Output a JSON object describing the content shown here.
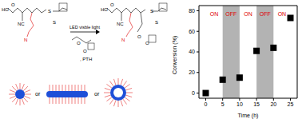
{
  "chart_data": {
    "type": "scatter",
    "x_label": "Time (h)",
    "y_label": "Conversion (%)",
    "x": [
      0,
      5,
      10,
      15,
      20,
      25
    ],
    "values": [
      0,
      13,
      15,
      41,
      44,
      73
    ],
    "color": "#000000",
    "marker": "square",
    "xlim": [
      -2,
      27
    ],
    "ylim": [
      -5,
      85
    ],
    "xticks": [
      0,
      5,
      10,
      15,
      20,
      25
    ],
    "yticks": [
      0,
      20,
      40,
      60,
      80
    ],
    "grid": false,
    "periods": [
      {
        "label": "ON",
        "start": 0,
        "end": 5,
        "light": true
      },
      {
        "label": "OFF",
        "start": 5,
        "end": 10,
        "light": false
      },
      {
        "label": "ON",
        "start": 10,
        "end": 15,
        "light": true
      },
      {
        "label": "OFF",
        "start": 15,
        "end": 20,
        "light": false
      },
      {
        "label": "ON",
        "start": 20,
        "end": 25,
        "light": true
      }
    ]
  },
  "scheme": {
    "reactant_atoms": [
      "HO",
      "O",
      "NC",
      "S",
      "S",
      "N"
    ],
    "arrow_text": "LED visble light",
    "monomer_atoms": [
      "O",
      "O"
    ],
    "catalyst": ", PTH",
    "product_atoms": [
      "HO",
      "O",
      "NC",
      "S",
      "S",
      "O",
      "O",
      "N"
    ],
    "morphology_separators": [
      "or",
      "or"
    ]
  }
}
